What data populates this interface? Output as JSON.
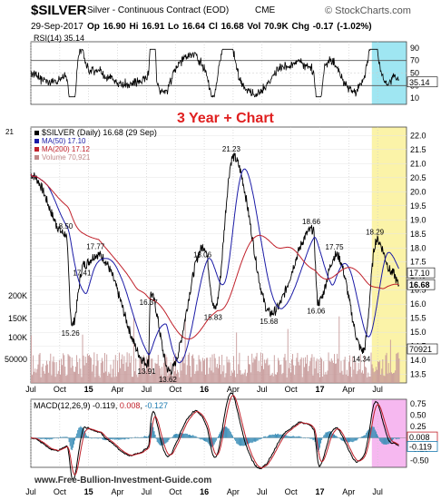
{
  "header": {
    "symbol": "$SILVER",
    "name": "Silver - Continuous Contract (EOD)",
    "exchange": "CME",
    "watermark": "© StockCharts.com",
    "date": "29-Sep-2017",
    "quote": "Op 16.90  Hi 16.91  Lo 16.64  Cl 16.68  Vol 70.9K  Chg -0.17 (-1.02%)",
    "quote_color": "#000000"
  },
  "footer": {
    "site": "www.Free-Bullion-Investment-Guide.com"
  },
  "annotation": {
    "text": "3 Year + Chart",
    "color": "#e02020"
  },
  "chart_data": [
    {
      "id": "rsi",
      "type": "line",
      "label": "RSI(14) 35.14",
      "ylim": [
        0,
        100
      ],
      "levels": [
        70,
        30
      ],
      "ticks": [
        "90",
        "70",
        "50",
        "30",
        "10"
      ],
      "last_value_label": "35.14",
      "highlight_color": "#9fe6f2"
    },
    {
      "id": "price",
      "type": "line",
      "legend": [
        "$SILVER (Daily) 16.68 (29 Sep)",
        "MA(50) 17.10",
        "MA(200) 17.12",
        "Volume 70,921"
      ],
      "legend_colors": [
        "#000000",
        "#1a1aa6",
        "#c0202a",
        "#c08888"
      ],
      "ylim": [
        13.2,
        22.3
      ],
      "y_ticks": [
        "22.0",
        "21.5",
        "21.0",
        "20.5",
        "20.0",
        "19.5",
        "19.0",
        "18.5",
        "18.0",
        "17.5",
        "17.0",
        "16.5",
        "16.0",
        "15.5",
        "15.0",
        "14.5",
        "14.0",
        "13.5"
      ],
      "volume_ticks": [
        "200K",
        "150K",
        "100K",
        "50000"
      ],
      "volume_last_label": "70921",
      "price_labels": [
        {
          "t": "3.6",
          "v": 18.5,
          "text": "18.50"
        },
        {
          "t": "5.5",
          "v": 17.41,
          "text": "17.41"
        },
        {
          "t": "6.9",
          "v": 17.77,
          "text": "17.77"
        },
        {
          "t": "4.3",
          "v": 15.26,
          "text": "15.26"
        },
        {
          "t": "12.4",
          "v": 16.37,
          "text": "16.37"
        },
        {
          "t": "12.2",
          "v": 13.91,
          "text": "13.91"
        },
        {
          "t": "14.4",
          "v": 13.62,
          "text": "13.62"
        },
        {
          "t": "18.0",
          "v": 18.06,
          "text": "18.06"
        },
        {
          "t": "19.1",
          "v": 15.83,
          "text": "15.83"
        },
        {
          "t": "21.0",
          "v": 21.23,
          "text": "21.23"
        },
        {
          "t": "24.9",
          "v": 15.68,
          "text": "15.68"
        },
        {
          "t": "29.3",
          "v": 18.66,
          "text": "18.66"
        },
        {
          "t": "31.7",
          "v": 17.75,
          "text": "17.75"
        },
        {
          "t": "29.8",
          "v": 16.06,
          "text": "16.06"
        },
        {
          "t": "34.5",
          "v": 14.34,
          "text": "14.34"
        },
        {
          "t": "35.9",
          "v": 18.29,
          "text": "18.29"
        }
      ],
      "last_labels": [
        "17.10",
        "16.68"
      ],
      "highlight_color": "#fbf3a8"
    },
    {
      "id": "macd",
      "type": "line",
      "label": "MACD(12,26,9) -0.119, 0.008, -0.127",
      "label_parts": [
        "MACD(12,26,9) ",
        "-0.119",
        ", ",
        "0.008",
        ", ",
        "-0.127"
      ],
      "label_colors": [
        "#000000",
        "#000000",
        "#000000",
        "#c0202a",
        "#000000",
        "#1a7ab0"
      ],
      "ylim": [
        -0.65,
        0.85
      ],
      "ticks": [
        "0.75",
        "0.50",
        "0.25",
        "0.00",
        "-0.25",
        "-0.50"
      ],
      "last_labels": [
        "0.008",
        "-0.119"
      ],
      "highlight_color": "#f6b8f0"
    }
  ],
  "x_axis": {
    "labels": [
      "Jul",
      "Oct",
      "15",
      "Apr",
      "Jul",
      "Oct",
      "16",
      "Apr",
      "Jul",
      "Oct",
      "17",
      "Apr",
      "Jul"
    ],
    "months": [
      0,
      3,
      6,
      9,
      12,
      15,
      18,
      21,
      24,
      27,
      30,
      33,
      36
    ],
    "bold_labels": [
      "15",
      "16",
      "17"
    ]
  }
}
